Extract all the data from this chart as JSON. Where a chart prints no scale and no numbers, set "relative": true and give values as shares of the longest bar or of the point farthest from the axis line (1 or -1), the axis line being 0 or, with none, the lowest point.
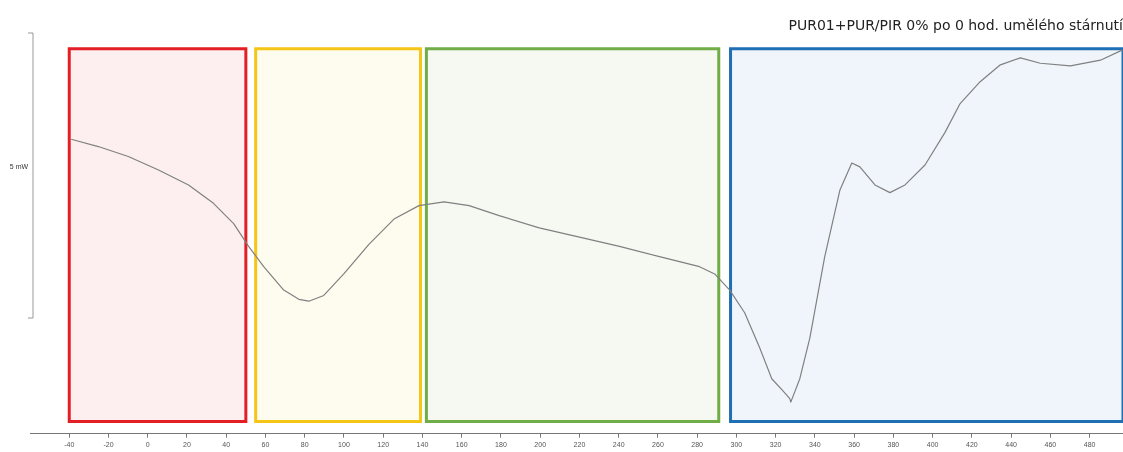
{
  "chart_data": {
    "type": "line",
    "title": "PUR01+PUR/PIR 0% po 0 hod. umělého stárnutí",
    "relative": true,
    "x": [
      -39,
      -25.2,
      -9.9,
      5.5,
      20.8,
      33.5,
      43.8,
      51.4,
      59.1,
      69.3,
      77,
      82.1,
      89.7,
      99.9,
      112.7,
      125.5,
      138.2,
      151,
      163.8,
      179.1,
      199.5,
      220,
      240.4,
      260.8,
      281.2,
      288.9,
      296.6,
      304.2,
      311.9,
      318,
      323.6,
      327.2,
      327.7,
      332.3,
      337.4,
      345,
      352.7,
      358.8,
      362.9,
      370.6,
      378.2,
      385.9,
      396.1,
      406.3,
      414,
      424.2,
      434.5,
      444.7,
      454.9,
      470.2,
      485.5,
      496.8
    ],
    "series": [
      {
        "color": "#808080",
        "values": [
          0.767,
          0.748,
          0.722,
          0.687,
          0.648,
          0.6,
          0.547,
          0.488,
          0.435,
          0.374,
          0.35,
          0.345,
          0.36,
          0.416,
          0.493,
          0.559,
          0.594,
          0.604,
          0.594,
          0.568,
          0.536,
          0.512,
          0.488,
          0.461,
          0.435,
          0.416,
          0.374,
          0.315,
          0.223,
          0.143,
          0.112,
          0.091,
          0.082,
          0.143,
          0.249,
          0.461,
          0.634,
          0.705,
          0.695,
          0.648,
          0.628,
          0.648,
          0.7,
          0.785,
          0.86,
          0.917,
          0.961,
          0.979,
          0.965,
          0.958,
          0.973,
          1
        ]
      }
    ],
    "xlim": [
      -60,
      497
    ],
    "xticks": [
      -40,
      -20,
      0,
      20,
      40,
      60,
      80,
      100,
      120,
      140,
      160,
      180,
      200,
      220,
      240,
      260,
      280,
      300,
      320,
      340,
      360,
      380,
      400,
      420,
      440,
      460,
      480
    ],
    "bands": [
      {
        "axis": "x",
        "from": -40,
        "to": 50,
        "color": "#e31e24"
      },
      {
        "axis": "x",
        "from": 55,
        "to": 139,
        "color": "#f5c518"
      },
      {
        "axis": "x",
        "from": 142,
        "to": 291,
        "color": "#70ad47"
      },
      {
        "axis": "x",
        "from": 297,
        "to": 497,
        "color": "#1f6fb5"
      }
    ],
    "annotations": [
      "5 mW"
    ],
    "marker": "none",
    "line_style": "solid"
  }
}
